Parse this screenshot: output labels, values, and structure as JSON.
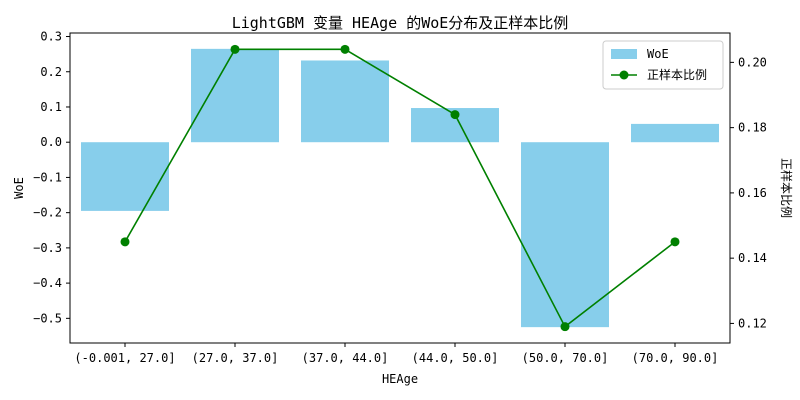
{
  "chart_data": {
    "type": "bar+line",
    "title": "LightGBM 变量 HEAge 的WoE分布及正样本比例",
    "xlabel": "HEAge",
    "ylabel_left": "WoE",
    "ylabel_right": "正样本比例",
    "categories": [
      "(-0.001, 27.0]",
      "(27.0, 37.0]",
      "(37.0, 44.0]",
      "(44.0, 50.0]",
      "(50.0, 70.0]",
      "(70.0, 90.0]"
    ],
    "series": [
      {
        "name": "WoE",
        "type": "bar",
        "axis": "left",
        "color": "#87ceeb",
        "values": [
          -0.195,
          0.265,
          0.232,
          0.097,
          -0.525,
          0.052
        ]
      },
      {
        "name": "正样本比例",
        "type": "line",
        "axis": "right",
        "color": "#008000",
        "values": [
          0.145,
          0.204,
          0.204,
          0.184,
          0.119,
          0.145
        ]
      }
    ],
    "ylim_left": [
      -0.57,
      0.31
    ],
    "yticks_left": [
      -0.5,
      -0.4,
      -0.3,
      -0.2,
      -0.1,
      0.0,
      0.1,
      0.2,
      0.3
    ],
    "ylim_right": [
      0.114,
      0.209
    ],
    "yticks_right": [
      0.12,
      0.14,
      0.16,
      0.18,
      0.2
    ],
    "legend_position": "top-right",
    "grid": false
  }
}
